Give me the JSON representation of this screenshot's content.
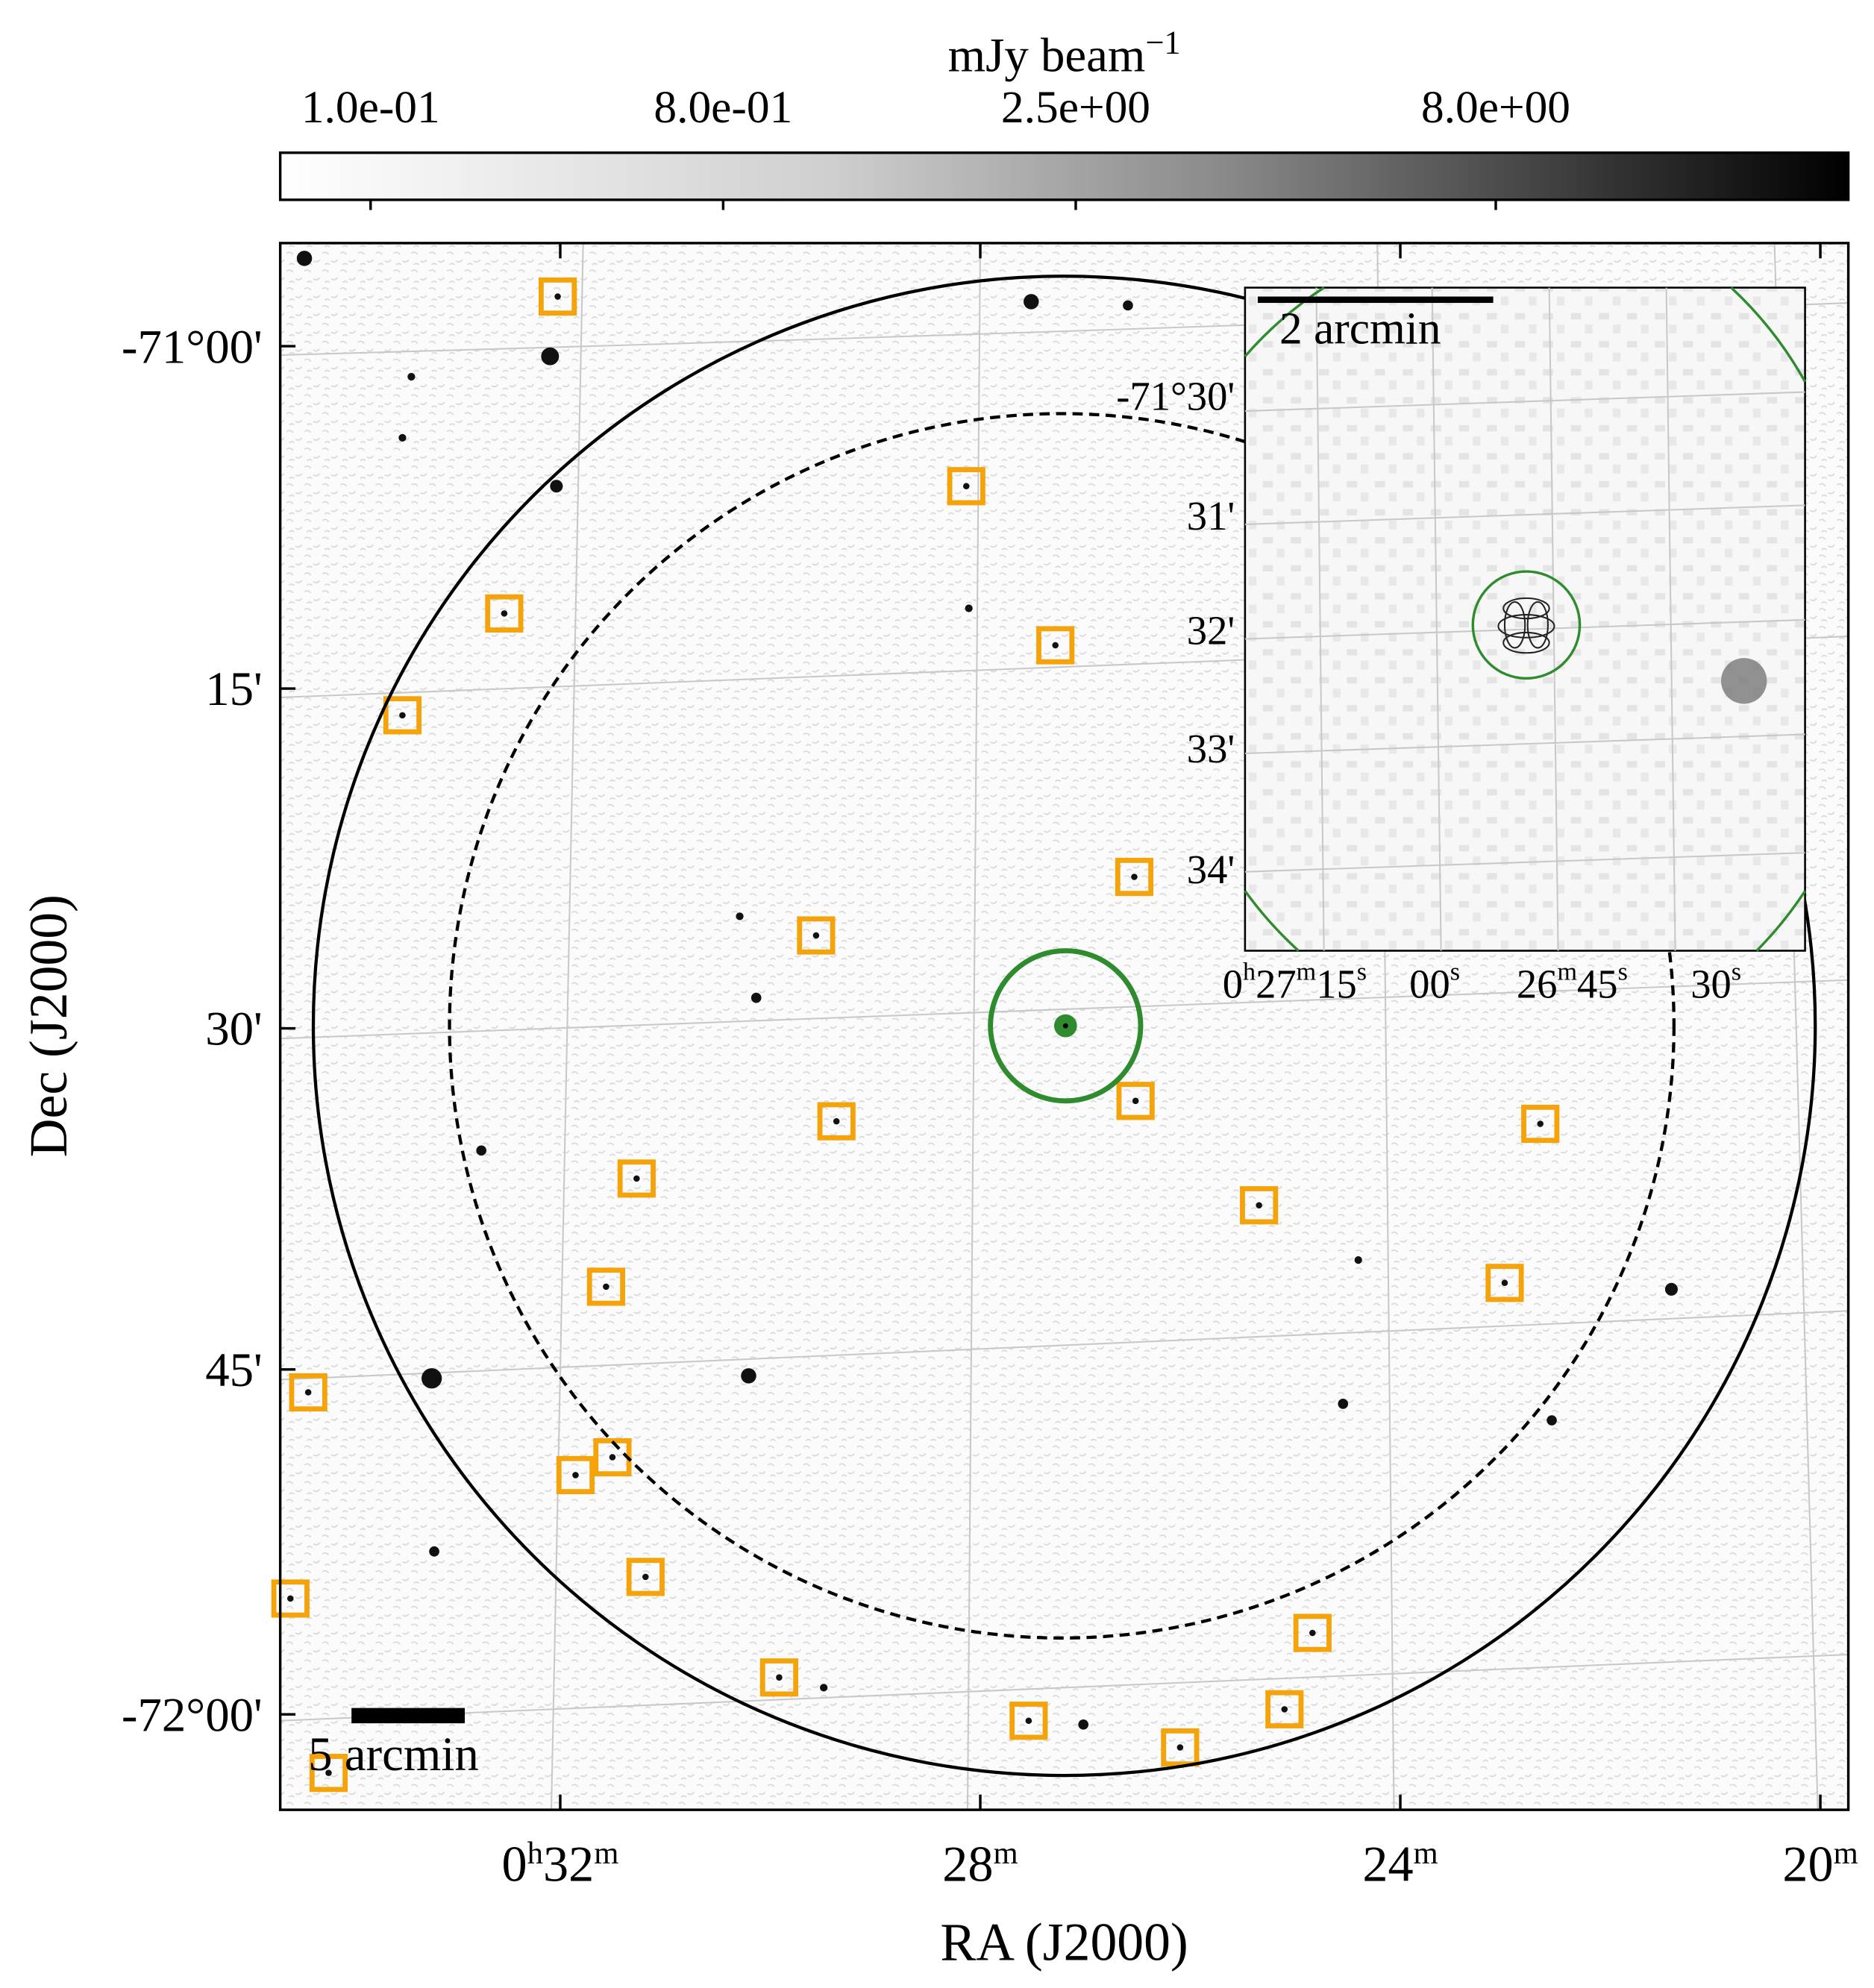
{
  "colorbar": {
    "label": "mJy beam",
    "label_exponent": "−1",
    "ticks": [
      "1.0e-01",
      "8.0e-01",
      "2.5e+00",
      "8.0e+00"
    ]
  },
  "main_axes": {
    "x_label": "RA (J2000)",
    "y_label": "Dec (J2000)",
    "x_ticks": [
      [
        "0",
        "h",
        "32",
        "m"
      ],
      [
        "28",
        "m"
      ],
      [
        "24",
        "m"
      ],
      [
        "20",
        "m"
      ]
    ],
    "y_ticks": [
      "-71°00'",
      "15'",
      "30'",
      "45'",
      "-72°00'"
    ],
    "scale_bar": "5 arcmin"
  },
  "inset": {
    "scale_bar": "2 arcmin",
    "y_ticks": [
      "-71°30'",
      "31'",
      "32'",
      "33'",
      "34'"
    ],
    "x_ticks": [
      [
        "0",
        "h",
        "27",
        "m",
        "15",
        "s"
      ],
      [
        "00",
        "s"
      ],
      [
        "26",
        "m",
        "45",
        "s"
      ],
      [
        "30",
        "s"
      ]
    ]
  }
}
